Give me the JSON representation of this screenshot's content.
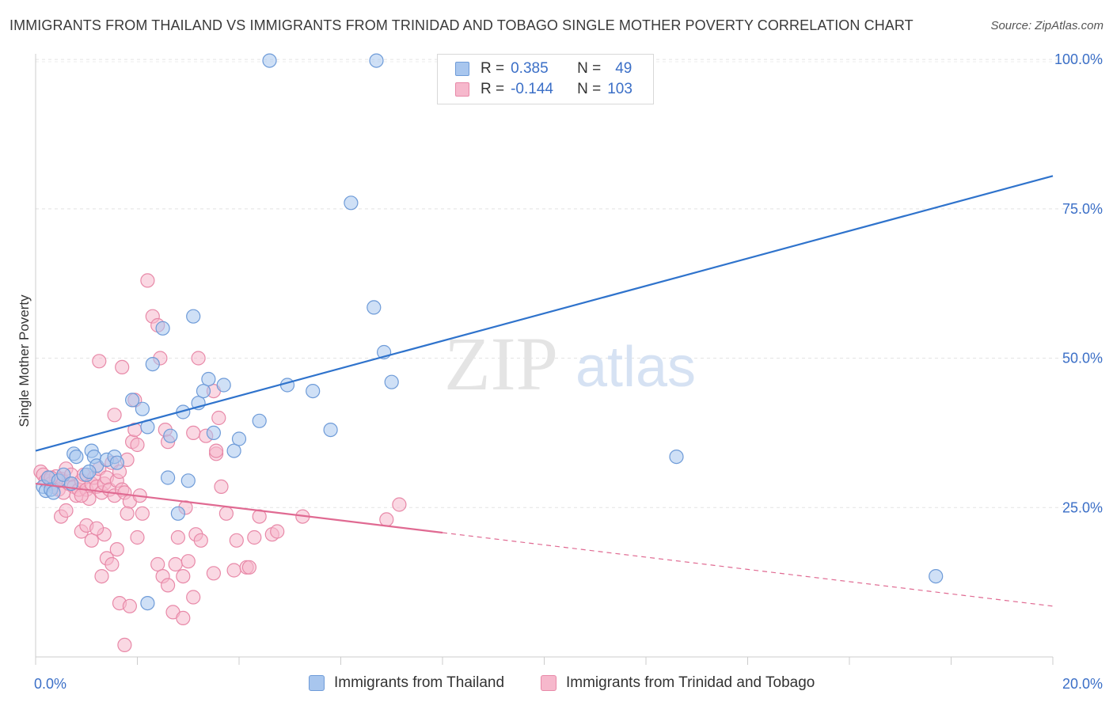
{
  "header": {
    "title": "IMMIGRANTS FROM THAILAND VS IMMIGRANTS FROM TRINIDAD AND TOBAGO SINGLE MOTHER POVERTY CORRELATION CHART",
    "source": "Source: ZipAtlas.com"
  },
  "watermark": {
    "zip": "ZIP",
    "atlas": "atlas"
  },
  "legend": {
    "rows": [
      {
        "r_label": "R =",
        "r_value": "0.385",
        "n_label": "N =",
        "n_value": "49"
      },
      {
        "r_label": "R =",
        "r_value": "-0.144",
        "n_label": "N =",
        "n_value": "103"
      }
    ]
  },
  "bottom_legend": {
    "thailand": "Immigrants from Thailand",
    "trinidad": "Immigrants from Trinidad and Tobago"
  },
  "colors": {
    "thailand_fill": "#a8c6ee",
    "thailand_stroke": "#6e9bd8",
    "thailand_line": "#2f73cc",
    "trinidad_fill": "#f6b8cc",
    "trinidad_stroke": "#e889a8",
    "trinidad_line": "#e06a92",
    "tick_label": "#3b6fc7"
  },
  "chart_data": {
    "type": "scatter",
    "title": "IMMIGRANTS FROM THAILAND VS IMMIGRANTS FROM TRINIDAD AND TOBAGO SINGLE MOTHER POVERTY CORRELATION CHART",
    "xlabel": "",
    "ylabel": "Single Mother Poverty",
    "xlim": [
      0,
      20
    ],
    "ylim": [
      0,
      102
    ],
    "x_tick_labels": [
      "0.0%",
      "20.0%"
    ],
    "y_ticks": [
      25,
      50,
      75,
      100
    ],
    "y_tick_labels": [
      "25.0%",
      "50.0%",
      "75.0%",
      "100.0%"
    ],
    "grid": true,
    "legend_position": "top-center",
    "series": [
      {
        "name": "Immigrants from Thailand",
        "points": [
          [
            0.15,
            28.5
          ],
          [
            0.2,
            27.8
          ],
          [
            0.25,
            30.0
          ],
          [
            0.3,
            28.0
          ],
          [
            0.45,
            29.5
          ],
          [
            0.55,
            30.5
          ],
          [
            0.7,
            29.0
          ],
          [
            0.75,
            34.0
          ],
          [
            0.8,
            33.5
          ],
          [
            1.0,
            30.5
          ],
          [
            1.1,
            34.5
          ],
          [
            1.15,
            33.5
          ],
          [
            1.2,
            32.0
          ],
          [
            1.4,
            33.0
          ],
          [
            1.55,
            33.5
          ],
          [
            1.6,
            32.5
          ],
          [
            1.9,
            43.0
          ],
          [
            2.1,
            41.5
          ],
          [
            2.2,
            38.5
          ],
          [
            2.3,
            49.0
          ],
          [
            2.5,
            55.0
          ],
          [
            2.65,
            37.0
          ],
          [
            2.8,
            24.0
          ],
          [
            2.9,
            41.0
          ],
          [
            3.0,
            29.5
          ],
          [
            3.1,
            57.0
          ],
          [
            3.2,
            42.5
          ],
          [
            3.3,
            44.5
          ],
          [
            3.4,
            46.5
          ],
          [
            3.5,
            37.5
          ],
          [
            3.7,
            45.5
          ],
          [
            3.9,
            34.5
          ],
          [
            4.0,
            36.5
          ],
          [
            4.4,
            39.5
          ],
          [
            4.95,
            45.5
          ],
          [
            5.45,
            44.5
          ],
          [
            5.8,
            38.0
          ],
          [
            6.2,
            76.0
          ],
          [
            6.65,
            58.5
          ],
          [
            6.85,
            51.0
          ],
          [
            7.0,
            46.0
          ],
          [
            4.6,
            99.8
          ],
          [
            6.7,
            99.8
          ],
          [
            12.6,
            33.5
          ],
          [
            17.7,
            13.5
          ],
          [
            2.2,
            9.0
          ],
          [
            0.35,
            27.5
          ],
          [
            1.05,
            31.0
          ],
          [
            2.6,
            30.0
          ]
        ]
      },
      {
        "name": "Immigrants from Trinidad and Tobago",
        "points": [
          [
            0.1,
            31.0
          ],
          [
            0.15,
            30.5
          ],
          [
            0.2,
            29.5
          ],
          [
            0.25,
            30.0
          ],
          [
            0.3,
            29.0
          ],
          [
            0.35,
            28.5
          ],
          [
            0.4,
            30.2
          ],
          [
            0.45,
            28.0
          ],
          [
            0.5,
            29.8
          ],
          [
            0.55,
            27.5
          ],
          [
            0.6,
            31.5
          ],
          [
            0.65,
            29.0
          ],
          [
            0.7,
            30.5
          ],
          [
            0.75,
            28.5
          ],
          [
            0.8,
            27.0
          ],
          [
            0.85,
            28.0
          ],
          [
            0.9,
            29.5
          ],
          [
            0.95,
            30.5
          ],
          [
            1.0,
            28.0
          ],
          [
            1.05,
            26.5
          ],
          [
            1.1,
            29.0
          ],
          [
            1.15,
            30.0
          ],
          [
            1.2,
            28.5
          ],
          [
            1.25,
            31.5
          ],
          [
            1.3,
            27.5
          ],
          [
            1.35,
            29.0
          ],
          [
            1.4,
            30.0
          ],
          [
            1.45,
            28.0
          ],
          [
            1.5,
            32.5
          ],
          [
            1.55,
            27.0
          ],
          [
            1.6,
            29.5
          ],
          [
            1.65,
            31.0
          ],
          [
            1.7,
            28.0
          ],
          [
            1.75,
            27.5
          ],
          [
            1.8,
            33.0
          ],
          [
            1.85,
            26.0
          ],
          [
            1.9,
            36.0
          ],
          [
            1.95,
            38.0
          ],
          [
            2.0,
            35.5
          ],
          [
            2.05,
            27.0
          ],
          [
            2.1,
            24.0
          ],
          [
            2.2,
            63.0
          ],
          [
            2.3,
            57.0
          ],
          [
            2.4,
            55.5
          ],
          [
            2.45,
            50.0
          ],
          [
            1.25,
            49.5
          ],
          [
            1.7,
            48.5
          ],
          [
            1.55,
            40.5
          ],
          [
            1.95,
            43.0
          ],
          [
            2.55,
            38.0
          ],
          [
            2.6,
            36.0
          ],
          [
            3.2,
            50.0
          ],
          [
            3.1,
            37.5
          ],
          [
            3.35,
            37.0
          ],
          [
            3.5,
            44.5
          ],
          [
            3.55,
            34.0
          ],
          [
            3.6,
            40.0
          ],
          [
            3.65,
            28.5
          ],
          [
            3.75,
            24.0
          ],
          [
            0.5,
            23.5
          ],
          [
            0.6,
            24.5
          ],
          [
            0.9,
            21.0
          ],
          [
            1.0,
            22.0
          ],
          [
            1.1,
            19.5
          ],
          [
            1.35,
            20.5
          ],
          [
            1.4,
            16.5
          ],
          [
            1.5,
            15.5
          ],
          [
            1.6,
            18.0
          ],
          [
            1.8,
            24.0
          ],
          [
            2.0,
            20.0
          ],
          [
            2.4,
            15.5
          ],
          [
            2.5,
            13.5
          ],
          [
            2.6,
            12.0
          ],
          [
            2.75,
            15.5
          ],
          [
            2.8,
            20.0
          ],
          [
            2.9,
            13.5
          ],
          [
            2.95,
            25.0
          ],
          [
            3.0,
            16.0
          ],
          [
            3.15,
            20.5
          ],
          [
            3.25,
            19.5
          ],
          [
            3.5,
            14.0
          ],
          [
            3.9,
            14.5
          ],
          [
            3.95,
            19.5
          ],
          [
            4.15,
            15.0
          ],
          [
            4.2,
            15.0
          ],
          [
            4.3,
            20.0
          ],
          [
            4.65,
            20.5
          ],
          [
            4.75,
            21.0
          ],
          [
            5.25,
            23.5
          ],
          [
            6.9,
            23.0
          ],
          [
            7.15,
            25.5
          ],
          [
            1.3,
            13.5
          ],
          [
            1.65,
            9.0
          ],
          [
            1.85,
            8.5
          ],
          [
            2.7,
            7.5
          ],
          [
            2.9,
            6.5
          ],
          [
            3.1,
            10.0
          ],
          [
            1.75,
            2.0
          ],
          [
            3.55,
            34.5
          ],
          [
            4.4,
            23.5
          ],
          [
            1.2,
            21.5
          ],
          [
            0.9,
            27.0
          ],
          [
            0.3,
            30.0
          ]
        ]
      }
    ],
    "trend_lines": [
      {
        "series": "Immigrants from Thailand",
        "from": [
          0,
          34.5
        ],
        "to": [
          20,
          80.5
        ],
        "dashed_from": null
      },
      {
        "series": "Immigrants from Trinidad and Tobago",
        "from": [
          0,
          29.0
        ],
        "to": [
          20,
          8.5
        ],
        "dashed_from": 8.0
      }
    ]
  }
}
